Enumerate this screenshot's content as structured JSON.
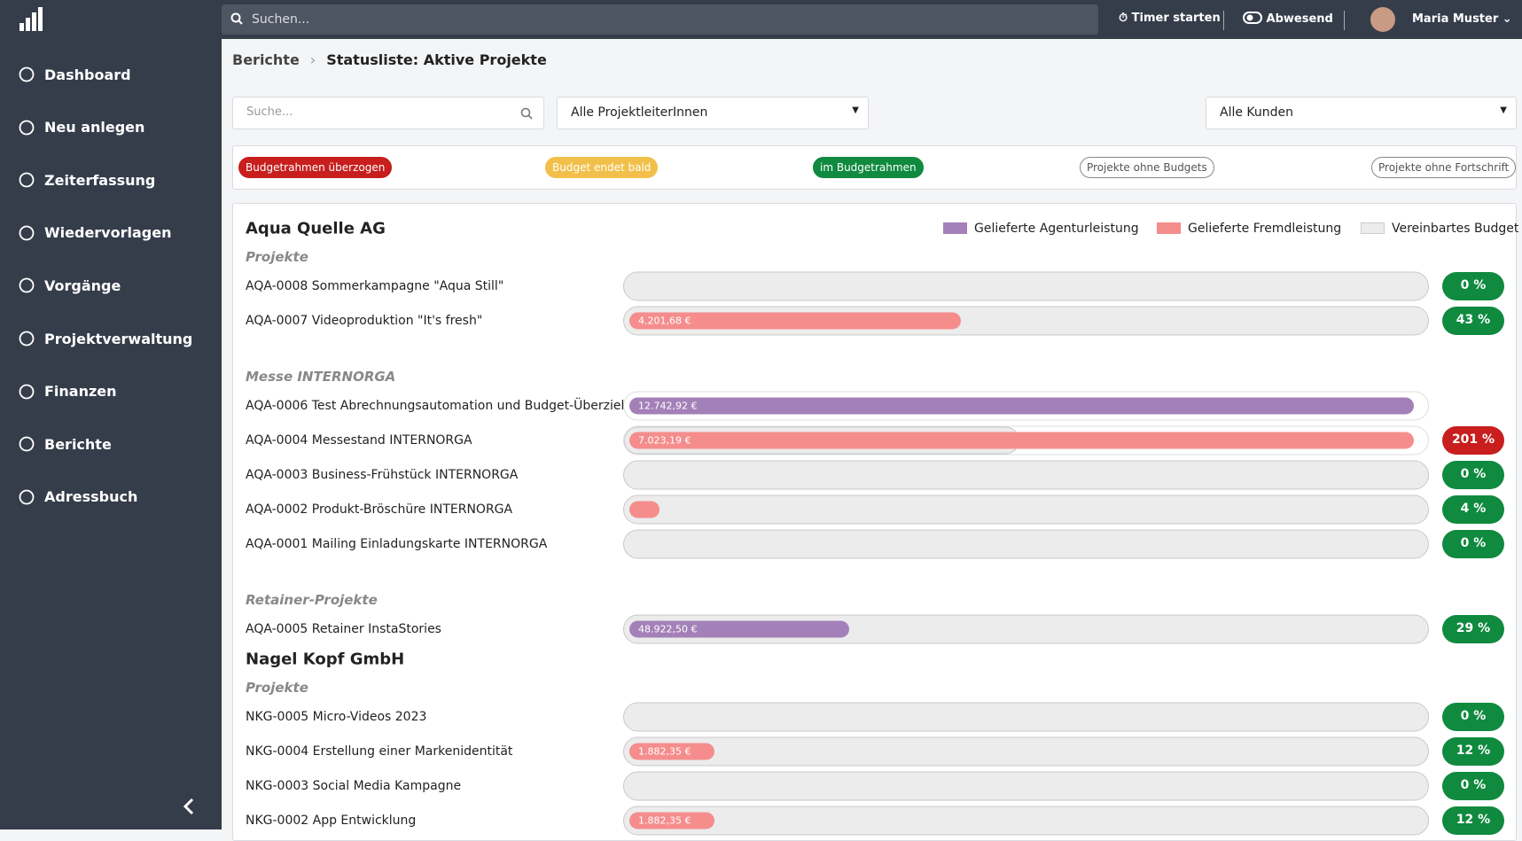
{
  "topbar": {
    "search_placeholder": "Suchen...",
    "timer": "Timer starten",
    "status": "Abwesend",
    "user": "Maria Muster"
  },
  "sidebar": {
    "items": [
      "Dashboard",
      "Neu anlegen",
      "Zeiterfassung",
      "Wiedervorlagen",
      "Vorgänge",
      "Projektverwaltung",
      "Finanzen",
      "Berichte",
      "Adressbuch"
    ]
  },
  "breadcrumb": {
    "parent": "Berichte",
    "current": "Statusliste: Aktive Projekte"
  },
  "filters": {
    "search_placeholder": "Suche...",
    "manager": "Alle ProjektleiterInnen",
    "customer": "Alle Kunden"
  },
  "status_filters": [
    "Budgetrahmen überzogen",
    "Budget endet bald",
    "im Budgetrahmen",
    "Projekte ohne Budgets",
    "Projekte ohne Fortschrift"
  ],
  "legend": [
    "Gelieferte Agenturleistung",
    "Gelieferte Fremdleistung",
    "Vereinbartes Budget"
  ],
  "clients": [
    {
      "name": "Aqua Quelle AG",
      "groups": [
        {
          "name": "Projekte",
          "projects": [
            {
              "label": "AQA-0008 Sommerkampagne \"Aqua Still\"",
              "percent": {
                "value": 0,
                "label": "0 %"
              }
            },
            {
              "label": "AQA-0007 Videoproduktion \"It's fresh\"",
              "amount": "4.201,68 €",
              "color": "#f58d8d",
              "percent": {
                "value": 43,
                "label": "43 %"
              }
            }
          ]
        },
        {
          "name": "Messe INTERNORGA",
          "projects": [
            {
              "label": "AQA-0006 Test Abrechnungsautomation und Budget-Überzieh...",
              "amount": "12.742,92 €",
              "color": "#a480b8"
            },
            {
              "label": "AQA-0004 Messestand INTERNORGA",
              "amount": "7.023,19 €",
              "color": "#f58d8d",
              "percent": {
                "value": 201,
                "label": "201 %"
              }
            },
            {
              "label": "AQA-0003 Business-Frühstück INTERNORGA",
              "percent": {
                "value": 0,
                "label": "0 %"
              }
            },
            {
              "label": "AQA-0002 Produkt-Bröschüre INTERNORGA",
              "color": "#f58d8d",
              "percent": {
                "value": 4,
                "label": "4 %"
              }
            },
            {
              "label": "AQA-0001 Mailing Einladungskarte INTERNORGA",
              "percent": {
                "value": 0,
                "label": "0 %"
              }
            }
          ]
        },
        {
          "name": "Retainer-Projekte",
          "projects": [
            {
              "label": "AQA-0005 Retainer InstaStories",
              "amount": "48.922,50 €",
              "color": "#a480b8",
              "percent": {
                "value": 29,
                "label": "29 %"
              }
            }
          ]
        }
      ]
    },
    {
      "name": "Nagel Kopf GmbH",
      "groups": [
        {
          "name": "Projekte",
          "projects": [
            {
              "label": "NKG-0005 Micro-Videos 2023",
              "percent": {
                "value": 0,
                "label": "0 %"
              }
            },
            {
              "label": "NKG-0004 Erstellung einer Markenidentität",
              "amount": "1.882,35 €",
              "color": "#f58d8d",
              "percent": {
                "value": 12,
                "label": "12 %"
              }
            },
            {
              "label": "NKG-0003 Social Media Kampagne",
              "percent": {
                "value": 0,
                "label": "0 %"
              }
            },
            {
              "label": "NKG-0002 App Entwicklung",
              "amount": "1.882,35 €",
              "color": "#f58d8d",
              "percent": {
                "value": 12,
                "label": "12 %"
              }
            }
          ]
        }
      ]
    }
  ]
}
